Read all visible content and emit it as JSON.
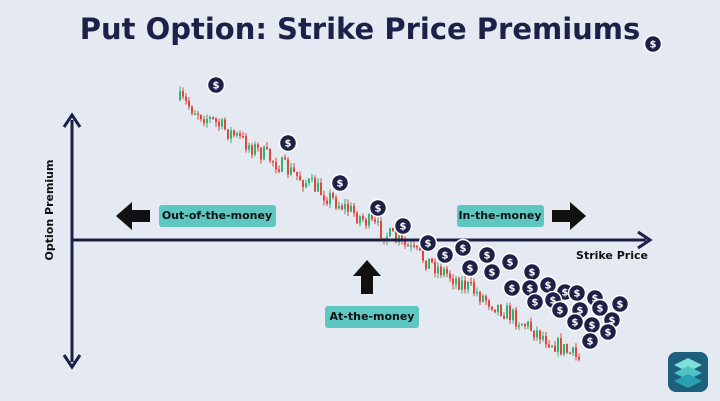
{
  "title": "Put Option: Strike Price Premiums",
  "y_axis_label": "Option Premium",
  "x_axis_label": "Strike Price",
  "labels": {
    "out_of_the_money": "Out-of-the-money",
    "in_the_money": "In-the-money",
    "at_the_money": "At-the-money"
  },
  "coin_symbol": "$"
}
